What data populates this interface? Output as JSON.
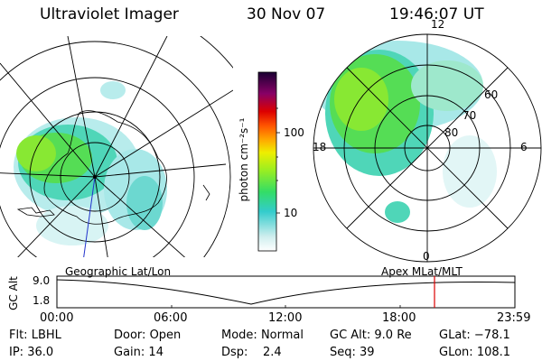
{
  "header": {
    "instrument": "Ultraviolet Imager",
    "date": "30 Nov 07",
    "time": "19:46:07 UT"
  },
  "left_panel": {
    "caption": "Geographic Lat/Lon"
  },
  "right_panel": {
    "caption": "Apex  MLat/MLT",
    "mlt_labels": {
      "top": "12",
      "left": "18",
      "right": "6",
      "bottom": "0"
    },
    "lat_labels": [
      "60",
      "70",
      "80"
    ]
  },
  "colorbar": {
    "unit_label": "photon cm⁻²s⁻¹",
    "ticks": [
      "100",
      "10"
    ],
    "log_scale": true
  },
  "altitude_plot": {
    "ylabel": "GC Alt",
    "y_ticks": [
      "9.0",
      "1.8"
    ],
    "x_ticks": [
      "00:00",
      "06:00",
      "12:00",
      "18:00",
      "23:59"
    ],
    "marker_color": "#dd0000"
  },
  "footer": {
    "row1": [
      {
        "key": "Flt:",
        "val": "LBHL"
      },
      {
        "key": "Door:",
        "val": "Open"
      },
      {
        "key": "Mode:",
        "val": "Normal"
      },
      {
        "key": "GC Alt:",
        "val": "9.0 Re"
      },
      {
        "key": "GLat:",
        "val": "−78.1"
      }
    ],
    "row2": [
      {
        "key": "IP:",
        "val": "36.0"
      },
      {
        "key": "Gain:",
        "val": "14"
      },
      {
        "key": "Dsp:",
        "val": "2.4"
      },
      {
        "key": "Seq:",
        "val": "39"
      },
      {
        "key": "GLon:",
        "val": "108.1"
      }
    ]
  }
}
